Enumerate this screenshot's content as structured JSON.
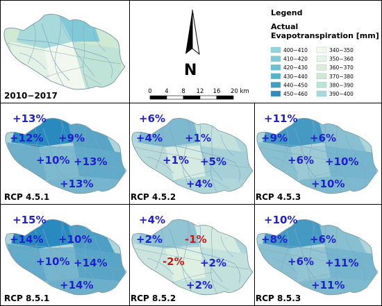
{
  "legend": {
    "title": "Legend",
    "subtitle_line1": "Actual",
    "subtitle_line2": "Evapotranspiration [mm]",
    "classes": [
      {
        "label": "400−410",
        "color": "#8fd4de"
      },
      {
        "label": "410−420",
        "color": "#7ecbd8"
      },
      {
        "label": "420−430",
        "color": "#6cc0d2"
      },
      {
        "label": "430−440",
        "color": "#57b2cc"
      },
      {
        "label": "440−450",
        "color": "#429fc4"
      },
      {
        "label": "450−460",
        "color": "#2f8dbd"
      },
      {
        "label": "340−350",
        "color": "#f4f9ef"
      },
      {
        "label": "350−360",
        "color": "#e8f4e3"
      },
      {
        "label": "360−370",
        "color": "#dcefdb"
      },
      {
        "label": "370−380",
        "color": "#cde9d6"
      },
      {
        "label": "380−390",
        "color": "#bde3d4"
      },
      {
        "label": "390−400",
        "color": "#a6dad8"
      }
    ]
  },
  "north_arrow": {
    "letter": "N"
  },
  "scale_bar": {
    "ticks": [
      "0",
      "4",
      "8",
      "12",
      "16",
      "20 km"
    ]
  },
  "panels": [
    {
      "label": "2010−2017",
      "changes": []
    },
    {
      "label": "RCP 4.5.1",
      "changes": [
        "+13%",
        "+12%",
        "+9%",
        "+10%",
        "+13%",
        "+13%"
      ]
    },
    {
      "label": "RCP 4.5.2",
      "changes": [
        "+6%",
        "+4%",
        "+1%",
        "+1%",
        "+5%",
        "+4%"
      ]
    },
    {
      "label": "RCP 4.5.3",
      "changes": [
        "+11%",
        "+9%",
        "+6%",
        "+6%",
        "+10%",
        "+10%"
      ]
    },
    {
      "label": "RCP 8.5.1",
      "changes": [
        "+15%",
        "+14%",
        "+10%",
        "+10%",
        "+14%",
        "+14%"
      ]
    },
    {
      "label": "RCP 8.5.2",
      "changes": [
        "+4%",
        "+2%",
        "-1%",
        "-2%",
        "+2%",
        "+2%"
      ]
    },
    {
      "label": "RCP 8.5.3",
      "changes": [
        "+10%",
        "+8%",
        "+6%",
        "+6%",
        "+11%",
        "+11%"
      ]
    }
  ],
  "colors": {
    "positive": "#1f1fcf",
    "negative": "#c41a1a",
    "river": "#7fa6c9",
    "boundary": "#8aa7b3"
  }
}
